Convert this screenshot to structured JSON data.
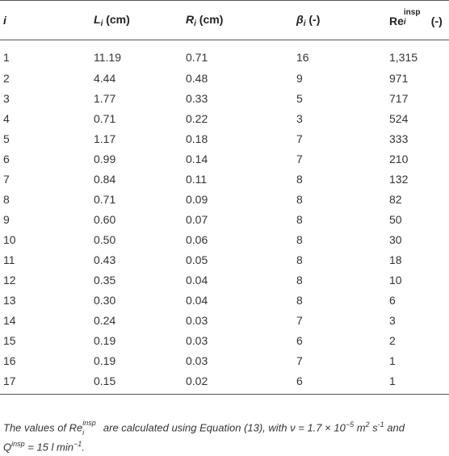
{
  "table": {
    "headers": {
      "i": "i",
      "L_symbol": "L",
      "L_sub": "i",
      "L_unit": " (cm)",
      "R_symbol": "R",
      "R_sub": "i",
      "R_unit": " (cm)",
      "beta_symbol": "β",
      "beta_sub": "i",
      "beta_unit": " (-)",
      "Re_symbol": "Re",
      "Re_sup": "insp",
      "Re_sub": "i",
      "Re_unit": " (-)"
    },
    "rows": [
      [
        "1",
        "11.19",
        "0.71",
        "16",
        "1,315"
      ],
      [
        "2",
        "4.44",
        "0.48",
        "9",
        "971"
      ],
      [
        "3",
        "1.77",
        "0.33",
        "5",
        "717"
      ],
      [
        "4",
        "0.71",
        "0.22",
        "3",
        "524"
      ],
      [
        "5",
        "1.17",
        "0.18",
        "7",
        "333"
      ],
      [
        "6",
        "0.99",
        "0.14",
        "7",
        "210"
      ],
      [
        "7",
        "0.84",
        "0.11",
        "8",
        "132"
      ],
      [
        "8",
        "0.71",
        "0.09",
        "8",
        "82"
      ],
      [
        "9",
        "0.60",
        "0.07",
        "8",
        "50"
      ],
      [
        "10",
        "0.50",
        "0.06",
        "8",
        "30"
      ],
      [
        "11",
        "0.43",
        "0.05",
        "8",
        "18"
      ],
      [
        "12",
        "0.35",
        "0.04",
        "8",
        "10"
      ],
      [
        "13",
        "0.30",
        "0.04",
        "8",
        "6"
      ],
      [
        "14",
        "0.24",
        "0.03",
        "7",
        "3"
      ],
      [
        "15",
        "0.19",
        "0.03",
        "6",
        "2"
      ],
      [
        "16",
        "0.19",
        "0.03",
        "7",
        "1"
      ],
      [
        "17",
        "0.15",
        "0.02",
        "6",
        "1"
      ]
    ]
  },
  "caption": {
    "part1": "The values of Re",
    "re_sup": "insp",
    "re_sub": "i",
    "part2": " are calculated using Equation (13), with ν = 1.7 × 10",
    "exp1": "−5",
    "part3": " m",
    "exp2": "2",
    "part4": " s",
    "exp3": "-1",
    "part5": " and",
    "part6": "Q",
    "exp4": "insp",
    "part7": " = 15 l min",
    "exp5": "−1",
    "part8": "."
  }
}
